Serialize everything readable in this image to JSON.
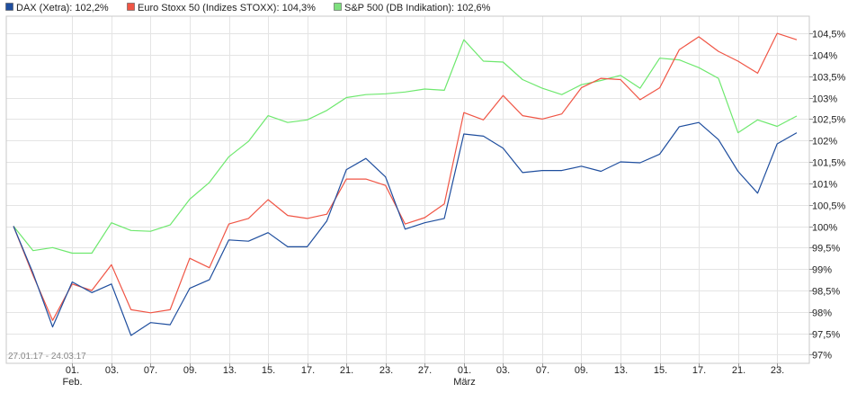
{
  "chart_data": {
    "type": "line",
    "date_range_label": "27.01.17 - 24.03.17",
    "y_unit": "%",
    "ylim": [
      96.8,
      104.9
    ],
    "y_ticks": [
      {
        "value": 97.0,
        "label": "97%"
      },
      {
        "value": 97.5,
        "label": "97,5%"
      },
      {
        "value": 98.0,
        "label": "98%"
      },
      {
        "value": 98.5,
        "label": "98,5%"
      },
      {
        "value": 99.0,
        "label": "99%"
      },
      {
        "value": 99.5,
        "label": "99,5%"
      },
      {
        "value": 100.0,
        "label": "100%"
      },
      {
        "value": 100.5,
        "label": "100,5%"
      },
      {
        "value": 101.0,
        "label": "101%"
      },
      {
        "value": 101.5,
        "label": "101,5%"
      },
      {
        "value": 102.0,
        "label": "102%"
      },
      {
        "value": 102.5,
        "label": "102,5%"
      },
      {
        "value": 103.0,
        "label": "103%"
      },
      {
        "value": 103.5,
        "label": "103,5%"
      },
      {
        "value": 104.0,
        "label": "104%"
      },
      {
        "value": 104.5,
        "label": "104,5%"
      }
    ],
    "x": [
      "2017-01-27",
      "2017-01-30",
      "2017-01-31",
      "2017-02-01",
      "2017-02-02",
      "2017-02-03",
      "2017-02-06",
      "2017-02-07",
      "2017-02-08",
      "2017-02-09",
      "2017-02-10",
      "2017-02-13",
      "2017-02-14",
      "2017-02-15",
      "2017-02-16",
      "2017-02-17",
      "2017-02-20",
      "2017-02-21",
      "2017-02-22",
      "2017-02-23",
      "2017-02-24",
      "2017-02-27",
      "2017-02-28",
      "2017-03-01",
      "2017-03-02",
      "2017-03-03",
      "2017-03-06",
      "2017-03-07",
      "2017-03-08",
      "2017-03-09",
      "2017-03-10",
      "2017-03-13",
      "2017-03-14",
      "2017-03-15",
      "2017-03-16",
      "2017-03-17",
      "2017-03-20",
      "2017-03-21",
      "2017-03-22",
      "2017-03-23",
      "2017-03-24"
    ],
    "x_ticks": [
      {
        "date": "2017-02-01",
        "label": "01.",
        "sub": "Feb."
      },
      {
        "date": "2017-02-03",
        "label": "03.",
        "sub": ""
      },
      {
        "date": "2017-02-07",
        "label": "07.",
        "sub": ""
      },
      {
        "date": "2017-02-09",
        "label": "09.",
        "sub": ""
      },
      {
        "date": "2017-02-13",
        "label": "13.",
        "sub": ""
      },
      {
        "date": "2017-02-15",
        "label": "15.",
        "sub": ""
      },
      {
        "date": "2017-02-17",
        "label": "17.",
        "sub": ""
      },
      {
        "date": "2017-02-21",
        "label": "21.",
        "sub": ""
      },
      {
        "date": "2017-02-23",
        "label": "23.",
        "sub": ""
      },
      {
        "date": "2017-02-27",
        "label": "27.",
        "sub": ""
      },
      {
        "date": "2017-03-01",
        "label": "01.",
        "sub": "März"
      },
      {
        "date": "2017-03-03",
        "label": "03.",
        "sub": ""
      },
      {
        "date": "2017-03-07",
        "label": "07.",
        "sub": ""
      },
      {
        "date": "2017-03-09",
        "label": "09.",
        "sub": ""
      },
      {
        "date": "2017-03-13",
        "label": "13.",
        "sub": ""
      },
      {
        "date": "2017-03-15",
        "label": "15.",
        "sub": ""
      },
      {
        "date": "2017-03-17",
        "label": "17.",
        "sub": ""
      },
      {
        "date": "2017-03-21",
        "label": "21.",
        "sub": ""
      },
      {
        "date": "2017-03-23",
        "label": "23.",
        "sub": ""
      }
    ],
    "grid": true,
    "legend_position": "top-left",
    "series": [
      {
        "name": "DAX (Xetra): 102,2%",
        "color": "#1f4e9e",
        "legend_fill": "#1f4e9e",
        "values": [
          100.0,
          98.9,
          97.65,
          98.7,
          98.45,
          98.65,
          97.45,
          97.75,
          97.7,
          98.55,
          98.75,
          99.68,
          99.65,
          99.85,
          99.52,
          99.52,
          100.12,
          101.32,
          101.58,
          101.15,
          99.93,
          100.08,
          100.18,
          102.15,
          102.1,
          101.82,
          101.25,
          101.3,
          101.3,
          101.4,
          101.28,
          101.5,
          101.48,
          101.68,
          102.32,
          102.42,
          102.02,
          101.28,
          100.77,
          101.92,
          102.18
        ]
      },
      {
        "name": "Euro Stoxx 50 (Indizes STOXX): 104,3%",
        "color": "#f05545",
        "legend_fill": "#f05545",
        "values": [
          100.0,
          98.85,
          97.8,
          98.65,
          98.5,
          99.1,
          98.05,
          97.98,
          98.05,
          99.25,
          99.03,
          100.05,
          100.18,
          100.62,
          100.25,
          100.18,
          100.28,
          101.1,
          101.1,
          100.95,
          100.05,
          100.2,
          100.52,
          102.65,
          102.48,
          103.05,
          102.58,
          102.5,
          102.62,
          103.23,
          103.45,
          103.42,
          102.95,
          103.23,
          104.12,
          104.42,
          104.08,
          103.85,
          103.57,
          104.5,
          104.35
        ]
      },
      {
        "name": "S&P 500 (DB Indikation): 102,6%",
        "color": "#6ee86e",
        "legend_fill": "#7ee07e",
        "values": [
          100.0,
          99.43,
          99.5,
          99.37,
          99.37,
          100.08,
          99.9,
          99.88,
          100.03,
          100.63,
          101.02,
          101.62,
          101.98,
          102.58,
          102.42,
          102.48,
          102.7,
          103.0,
          103.07,
          103.09,
          103.13,
          103.2,
          103.17,
          104.35,
          103.85,
          103.83,
          103.42,
          103.22,
          103.07,
          103.3,
          103.4,
          103.52,
          103.22,
          103.92,
          103.88,
          103.7,
          103.45,
          102.18,
          102.48,
          102.33,
          102.57
        ]
      }
    ]
  }
}
